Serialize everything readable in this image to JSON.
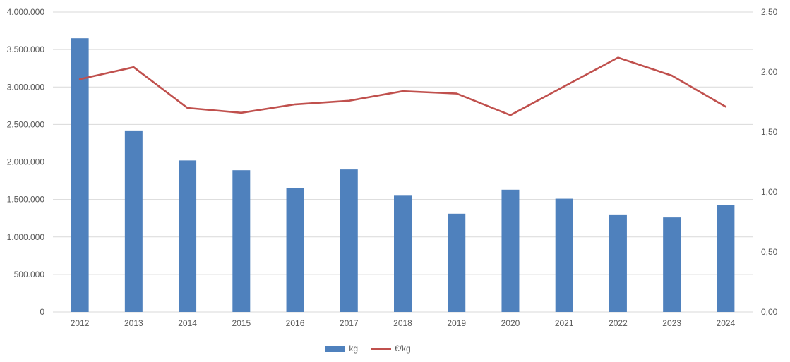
{
  "chart_data": {
    "type": "combo",
    "title": "",
    "categories": [
      "2012",
      "2013",
      "2014",
      "2015",
      "2016",
      "2017",
      "2018",
      "2019",
      "2020",
      "2021",
      "2022",
      "2023",
      "2024"
    ],
    "series": [
      {
        "name": "kg",
        "type": "bar",
        "axis": "left",
        "color": "#4F81BD",
        "values": [
          3650000,
          2420000,
          2020000,
          1890000,
          1650000,
          1900000,
          1550000,
          1310000,
          1630000,
          1510000,
          1300000,
          1260000,
          1430000
        ]
      },
      {
        "name": "€/kg",
        "type": "line",
        "axis": "right",
        "color": "#C0504D",
        "values": [
          1.94,
          2.04,
          1.7,
          1.66,
          1.73,
          1.76,
          1.84,
          1.82,
          1.64,
          1.88,
          2.12,
          1.97,
          1.71
        ]
      }
    ],
    "left_axis": {
      "min": 0,
      "max": 4000000,
      "step": 500000,
      "tick_labels": [
        "0",
        "500.000",
        "1.000.000",
        "1.500.000",
        "2.000.000",
        "2.500.000",
        "3.000.000",
        "3.500.000",
        "4.000.000"
      ]
    },
    "right_axis": {
      "min": 0,
      "max": 2.5,
      "step": 0.5,
      "tick_labels": [
        "0,00",
        "0,50",
        "1,00",
        "1,50",
        "2,00",
        "2,50"
      ]
    },
    "grid": true,
    "legend_position": "bottom-center",
    "colors": {
      "grid": "#D9D9D9",
      "text": "#595959",
      "background": "#FFFFFF"
    }
  }
}
